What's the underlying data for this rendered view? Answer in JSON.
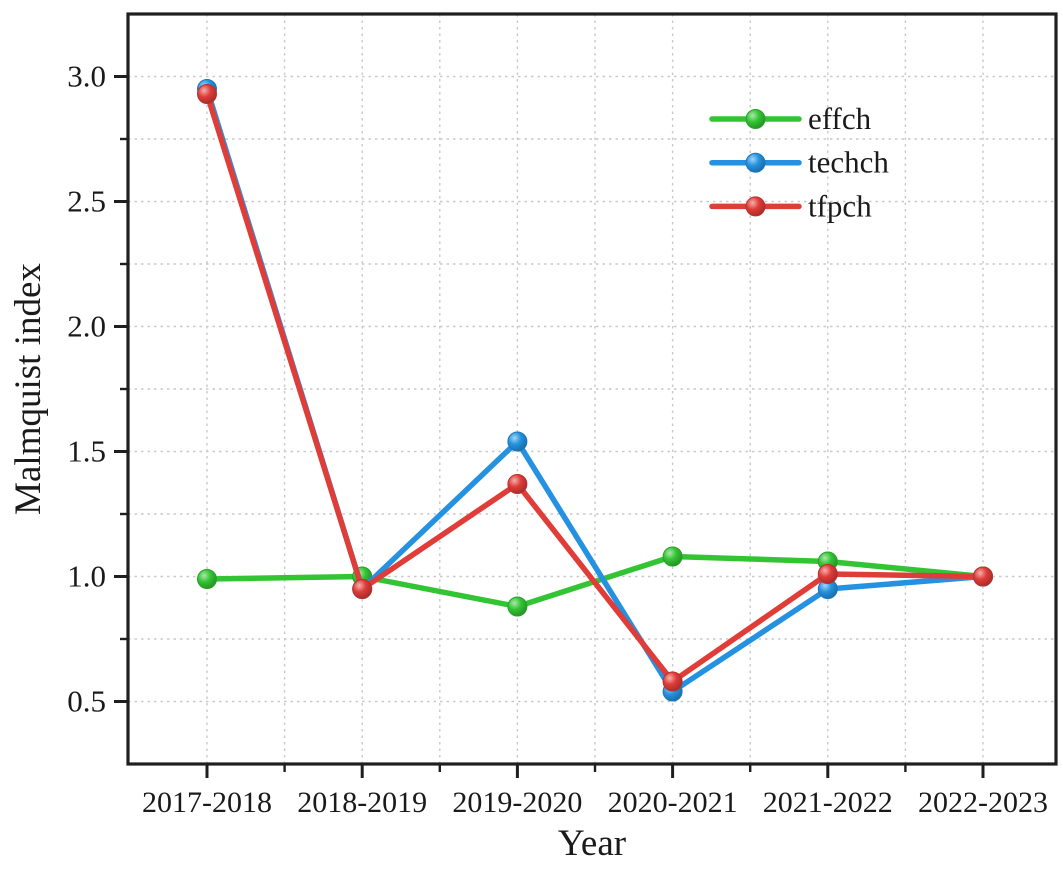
{
  "figure": {
    "background": "#ffffff",
    "text_color": "#1a1a1a",
    "axis_color": "#1f1f1f",
    "grid_color": "#c9c9c9"
  },
  "chart_data": {
    "type": "line",
    "title": "",
    "xlabel": "Year",
    "ylabel": "Malmquist index",
    "categories": [
      "2017-2018",
      "2018-2019",
      "2019-2020",
      "2020-2021",
      "2021-2022",
      "2022-2023"
    ],
    "series": [
      {
        "name": "effch",
        "color": "#33c433",
        "values": [
          0.99,
          1.0,
          0.88,
          1.08,
          1.06,
          1.0
        ]
      },
      {
        "name": "techch",
        "color": "#2492e0",
        "values": [
          2.95,
          0.95,
          1.54,
          0.54,
          0.95,
          1.0
        ]
      },
      {
        "name": "tfpch",
        "color": "#e03c38",
        "values": [
          2.93,
          0.95,
          1.37,
          0.58,
          1.01,
          1.0
        ]
      }
    ],
    "ylim": [
      0.25,
      3.25
    ],
    "ytick_labels": [
      "0.5",
      "1.0",
      "1.5",
      "2.0",
      "2.5",
      "3.0"
    ],
    "ytick_values": [
      0.5,
      1.0,
      1.5,
      2.0,
      2.5,
      3.0
    ],
    "ytick_minor_values": [
      0.75,
      1.25,
      1.75,
      2.25,
      2.75
    ],
    "grid": true,
    "grid_minor": true,
    "legend_position": "upper-right-inside",
    "legend_entries": [
      "effch",
      "techch",
      "tfpch"
    ]
  }
}
